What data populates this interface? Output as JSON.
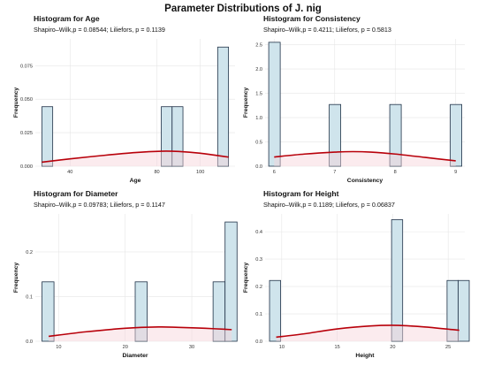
{
  "figure": {
    "title": "Parameter Distributions of J. nig"
  },
  "colors": {
    "bar_fill": "#cfe4ec",
    "bar_stroke": "#1f3147",
    "density": "#b8000a",
    "density_fill": "#f7d2da",
    "grid": "#e6e6e6"
  },
  "chart_data": [
    {
      "type": "bar",
      "title": "Histogram for Age",
      "subtitle": "Shapiro–Wilk,p = 0.08544; Liliefors, p = 0.1139",
      "xlabel": "Age",
      "ylabel": "Frequency",
      "xlim": [
        24,
        116
      ],
      "ylim": [
        0,
        0.095
      ],
      "xticks": [
        {
          "value": 40,
          "label": "40"
        },
        {
          "value": 80,
          "label": "80"
        },
        {
          "value": 100,
          "label": "100"
        }
      ],
      "yticks": [
        {
          "value": 0,
          "label": "0.000"
        },
        {
          "value": 0.025,
          "label": "0.025"
        },
        {
          "value": 0.05,
          "label": "0.050"
        },
        {
          "value": 0.075,
          "label": "0.075"
        }
      ],
      "bars": [
        {
          "x0": 27,
          "x1": 32,
          "value": 0.0444
        },
        {
          "x0": 82,
          "x1": 87,
          "value": 0.0444
        },
        {
          "x0": 87,
          "x1": 92,
          "value": 0.0444
        },
        {
          "x0": 108,
          "x1": 113,
          "value": 0.0889
        }
      ],
      "density": {
        "x": [
          27,
          40,
          55,
          70,
          82,
          90,
          100,
          113
        ],
        "y": [
          0.003,
          0.0055,
          0.008,
          0.0102,
          0.0112,
          0.011,
          0.0097,
          0.0068
        ]
      }
    },
    {
      "type": "bar",
      "title": "Histogram for Consistency",
      "subtitle": "Shapiro–Wilk,p = 0.4211; Liliefors, p = 0.5813",
      "xlabel": "Consistency",
      "ylabel": "Frequency",
      "xlim": [
        5.85,
        9.15
      ],
      "ylim": [
        0,
        2.62
      ],
      "xticks": [
        {
          "value": 6,
          "label": "6"
        },
        {
          "value": 7,
          "label": "7"
        },
        {
          "value": 8,
          "label": "8"
        },
        {
          "value": 9,
          "label": "9"
        }
      ],
      "yticks": [
        {
          "value": 0,
          "label": "0.0"
        },
        {
          "value": 0.5,
          "label": "0.5"
        },
        {
          "value": 1.0,
          "label": "1.0"
        },
        {
          "value": 1.5,
          "label": "1.5"
        },
        {
          "value": 2.0,
          "label": "2.0"
        },
        {
          "value": 2.5,
          "label": "2.5"
        }
      ],
      "bars": [
        {
          "x0": 5.91,
          "x1": 6.1,
          "value": 2.55
        },
        {
          "x0": 6.91,
          "x1": 7.1,
          "value": 1.27
        },
        {
          "x0": 7.91,
          "x1": 8.1,
          "value": 1.27
        },
        {
          "x0": 8.91,
          "x1": 9.1,
          "value": 1.27
        }
      ],
      "density": {
        "x": [
          6,
          6.5,
          7,
          7.3,
          7.6,
          8,
          8.5,
          9
        ],
        "y": [
          0.19,
          0.25,
          0.29,
          0.3,
          0.29,
          0.25,
          0.18,
          0.11
        ]
      }
    },
    {
      "type": "bar",
      "title": "Histogram for Diameter",
      "subtitle": "Shapiro–Wilk,p = 0.09783; Liliefors, p = 0.1147",
      "xlabel": "Diameter",
      "ylabel": "Frequency",
      "xlim": [
        6.5,
        36.5
      ],
      "ylim": [
        0,
        0.285
      ],
      "xticks": [
        {
          "value": 10,
          "label": "10"
        },
        {
          "value": 20,
          "label": "20"
        },
        {
          "value": 30,
          "label": "30"
        }
      ],
      "yticks": [
        {
          "value": 0,
          "label": "0.0"
        },
        {
          "value": 0.1,
          "label": "0.1"
        },
        {
          "value": 0.2,
          "label": "0.2"
        }
      ],
      "bars": [
        {
          "x0": 7.5,
          "x1": 9.3,
          "value": 0.133
        },
        {
          "x0": 21.5,
          "x1": 23.3,
          "value": 0.133
        },
        {
          "x0": 33.2,
          "x1": 35.0,
          "value": 0.133
        },
        {
          "x0": 35.0,
          "x1": 36.8,
          "value": 0.267
        }
      ],
      "density": {
        "x": [
          8.5,
          14,
          20,
          25,
          28,
          32,
          36
        ],
        "y": [
          0.011,
          0.021,
          0.029,
          0.032,
          0.031,
          0.029,
          0.026
        ]
      }
    },
    {
      "type": "bar",
      "title": "Histogram for Height",
      "subtitle": "Shapiro–Wilk,p = 0.1189; Liliefors, p = 0.06837",
      "xlabel": "Height",
      "ylabel": "Frequency",
      "xlim": [
        8.5,
        26.5
      ],
      "ylim": [
        0,
        0.465
      ],
      "xticks": [
        {
          "value": 10,
          "label": "10"
        },
        {
          "value": 15,
          "label": "15"
        },
        {
          "value": 20,
          "label": "20"
        },
        {
          "value": 25,
          "label": "25"
        }
      ],
      "yticks": [
        {
          "value": 0,
          "label": "0.0"
        },
        {
          "value": 0.1,
          "label": "0.1"
        },
        {
          "value": 0.2,
          "label": "0.2"
        },
        {
          "value": 0.3,
          "label": "0.3"
        },
        {
          "value": 0.4,
          "label": "0.4"
        }
      ],
      "bars": [
        {
          "x0": 8.9,
          "x1": 9.9,
          "value": 0.222
        },
        {
          "x0": 19.9,
          "x1": 20.9,
          "value": 0.444
        },
        {
          "x0": 24.9,
          "x1": 25.9,
          "value": 0.222
        },
        {
          "x0": 25.9,
          "x1": 26.9,
          "value": 0.222
        }
      ],
      "density": {
        "x": [
          9.5,
          12,
          15,
          18,
          20.5,
          23,
          26
        ],
        "y": [
          0.015,
          0.027,
          0.045,
          0.056,
          0.058,
          0.052,
          0.04
        ]
      }
    }
  ]
}
